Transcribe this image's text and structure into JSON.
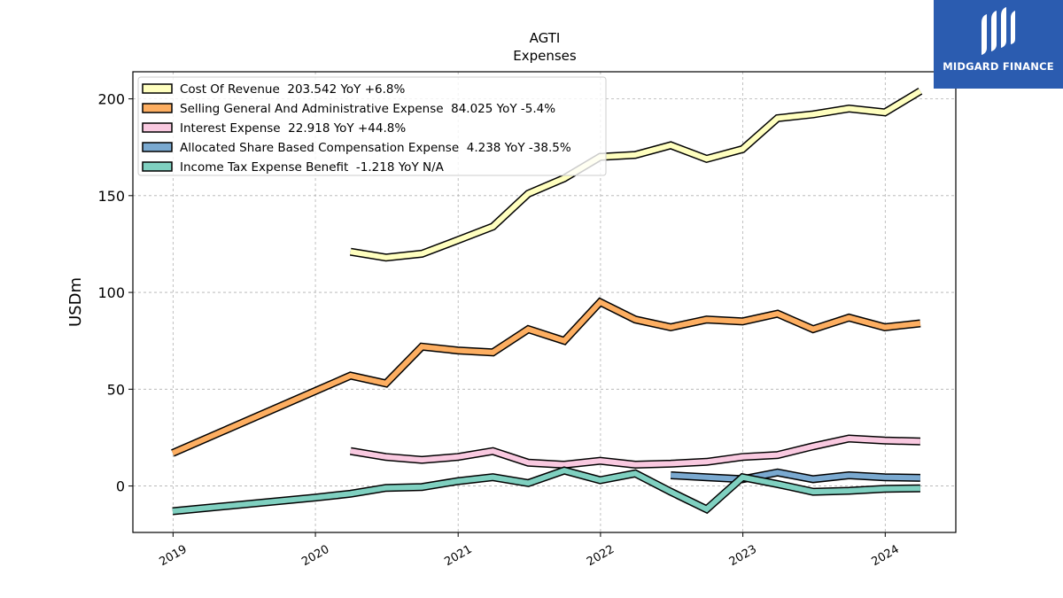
{
  "brand": {
    "name": "MIDGARD FINANCE",
    "logo_icon": "midgard-logo-icon",
    "background": "#2b5cb0"
  },
  "chart_data": {
    "type": "line",
    "title": "AGTI",
    "subtitle": "Expenses",
    "xlabel": "",
    "ylabel": "USDm",
    "x_ticks": [
      "2019",
      "2020",
      "2021",
      "2022",
      "2023",
      "2024"
    ],
    "y_ticks": [
      0,
      50,
      100,
      150,
      200
    ],
    "xlim": [
      "2018-09-20",
      "2024-06-30"
    ],
    "ylim": [
      -24,
      214
    ],
    "grid": true,
    "legend_position": "top-left",
    "series": [
      {
        "name": "Cost Of Revenue",
        "legend_label": "Cost Of Revenue  203.542 YoY +6.8%",
        "color": "#ffffbf",
        "points": [
          [
            "2020-03-31",
            121
          ],
          [
            "2020-06-30",
            118
          ],
          [
            "2020-09-30",
            120
          ],
          [
            "2020-12-31",
            127
          ],
          [
            "2021-03-31",
            134
          ],
          [
            "2021-06-30",
            151
          ],
          [
            "2021-09-30",
            159
          ],
          [
            "2021-12-31",
            170
          ],
          [
            "2022-03-31",
            171
          ],
          [
            "2022-06-30",
            176
          ],
          [
            "2022-09-30",
            169
          ],
          [
            "2022-12-31",
            174
          ],
          [
            "2023-03-31",
            190
          ],
          [
            "2023-06-30",
            192
          ],
          [
            "2023-09-30",
            195
          ],
          [
            "2023-12-31",
            193
          ],
          [
            "2024-03-31",
            204
          ]
        ]
      },
      {
        "name": "Selling General And Administrative Expense",
        "legend_label": "Selling General And Administrative Expense  84.025 YoY -5.4%",
        "color": "#fdae61",
        "points": [
          [
            "2018-12-31",
            17
          ],
          [
            "2019-12-31",
            49
          ],
          [
            "2020-03-31",
            57
          ],
          [
            "2020-06-30",
            53
          ],
          [
            "2020-09-30",
            72
          ],
          [
            "2020-12-31",
            70
          ],
          [
            "2021-03-31",
            69
          ],
          [
            "2021-06-30",
            81
          ],
          [
            "2021-09-30",
            75
          ],
          [
            "2021-12-31",
            95
          ],
          [
            "2022-03-31",
            86
          ],
          [
            "2022-06-30",
            82
          ],
          [
            "2022-09-30",
            86
          ],
          [
            "2022-12-31",
            85
          ],
          [
            "2023-03-31",
            89
          ],
          [
            "2023-06-30",
            81
          ],
          [
            "2023-09-30",
            87
          ],
          [
            "2023-12-31",
            82
          ],
          [
            "2024-03-31",
            84
          ]
        ]
      },
      {
        "name": "Interest Expense",
        "legend_label": "Interest Expense  22.918 YoY +44.8%",
        "color": "#f9c9e0",
        "points": [
          [
            "2020-03-31",
            18
          ],
          [
            "2020-06-30",
            15
          ],
          [
            "2020-09-30",
            13.5
          ],
          [
            "2020-12-31",
            15
          ],
          [
            "2021-03-31",
            18
          ],
          [
            "2021-06-30",
            12
          ],
          [
            "2021-09-30",
            11
          ],
          [
            "2021-12-31",
            13
          ],
          [
            "2022-03-31",
            11
          ],
          [
            "2022-06-30",
            11.5
          ],
          [
            "2022-09-30",
            12.5
          ],
          [
            "2022-12-31",
            15
          ],
          [
            "2023-03-31",
            16
          ],
          [
            "2023-06-30",
            20.5
          ],
          [
            "2023-09-30",
            24.5
          ],
          [
            "2023-12-31",
            23.5
          ],
          [
            "2024-03-31",
            23
          ]
        ]
      },
      {
        "name": "Allocated Share Based Compensation Expense",
        "legend_label": "Allocated Share Based Compensation Expense  4.238 YoY -38.5%",
        "color": "#7aa9d0",
        "points": [
          [
            "2022-06-30",
            5.5
          ],
          [
            "2022-09-30",
            4.5
          ],
          [
            "2022-12-31",
            3.5
          ],
          [
            "2023-03-31",
            7
          ],
          [
            "2023-06-30",
            3.5
          ],
          [
            "2023-09-30",
            5.5
          ],
          [
            "2023-12-31",
            4.5
          ],
          [
            "2024-03-31",
            4.2
          ]
        ]
      },
      {
        "name": "Income Tax Expense Benefit",
        "legend_label": "Income Tax Expense Benefit  -1.218 YoY N/A",
        "color": "#7fd0c0",
        "points": [
          [
            "2018-12-31",
            -13
          ],
          [
            "2019-12-31",
            -6
          ],
          [
            "2020-03-31",
            -4
          ],
          [
            "2020-06-30",
            -1
          ],
          [
            "2020-09-30",
            -0.5
          ],
          [
            "2020-12-31",
            2.5
          ],
          [
            "2021-03-31",
            4.5
          ],
          [
            "2021-06-30",
            1.5
          ],
          [
            "2021-09-30",
            8
          ],
          [
            "2021-12-31",
            3
          ],
          [
            "2022-03-31",
            6.5
          ],
          [
            "2022-06-30",
            -3
          ],
          [
            "2022-09-30",
            -12
          ],
          [
            "2022-12-31",
            4.5
          ],
          [
            "2023-03-31",
            1
          ],
          [
            "2023-06-30",
            -3
          ],
          [
            "2023-09-30",
            -2.5
          ],
          [
            "2023-12-31",
            -1.5
          ],
          [
            "2024-03-31",
            -1.2
          ]
        ]
      }
    ]
  }
}
